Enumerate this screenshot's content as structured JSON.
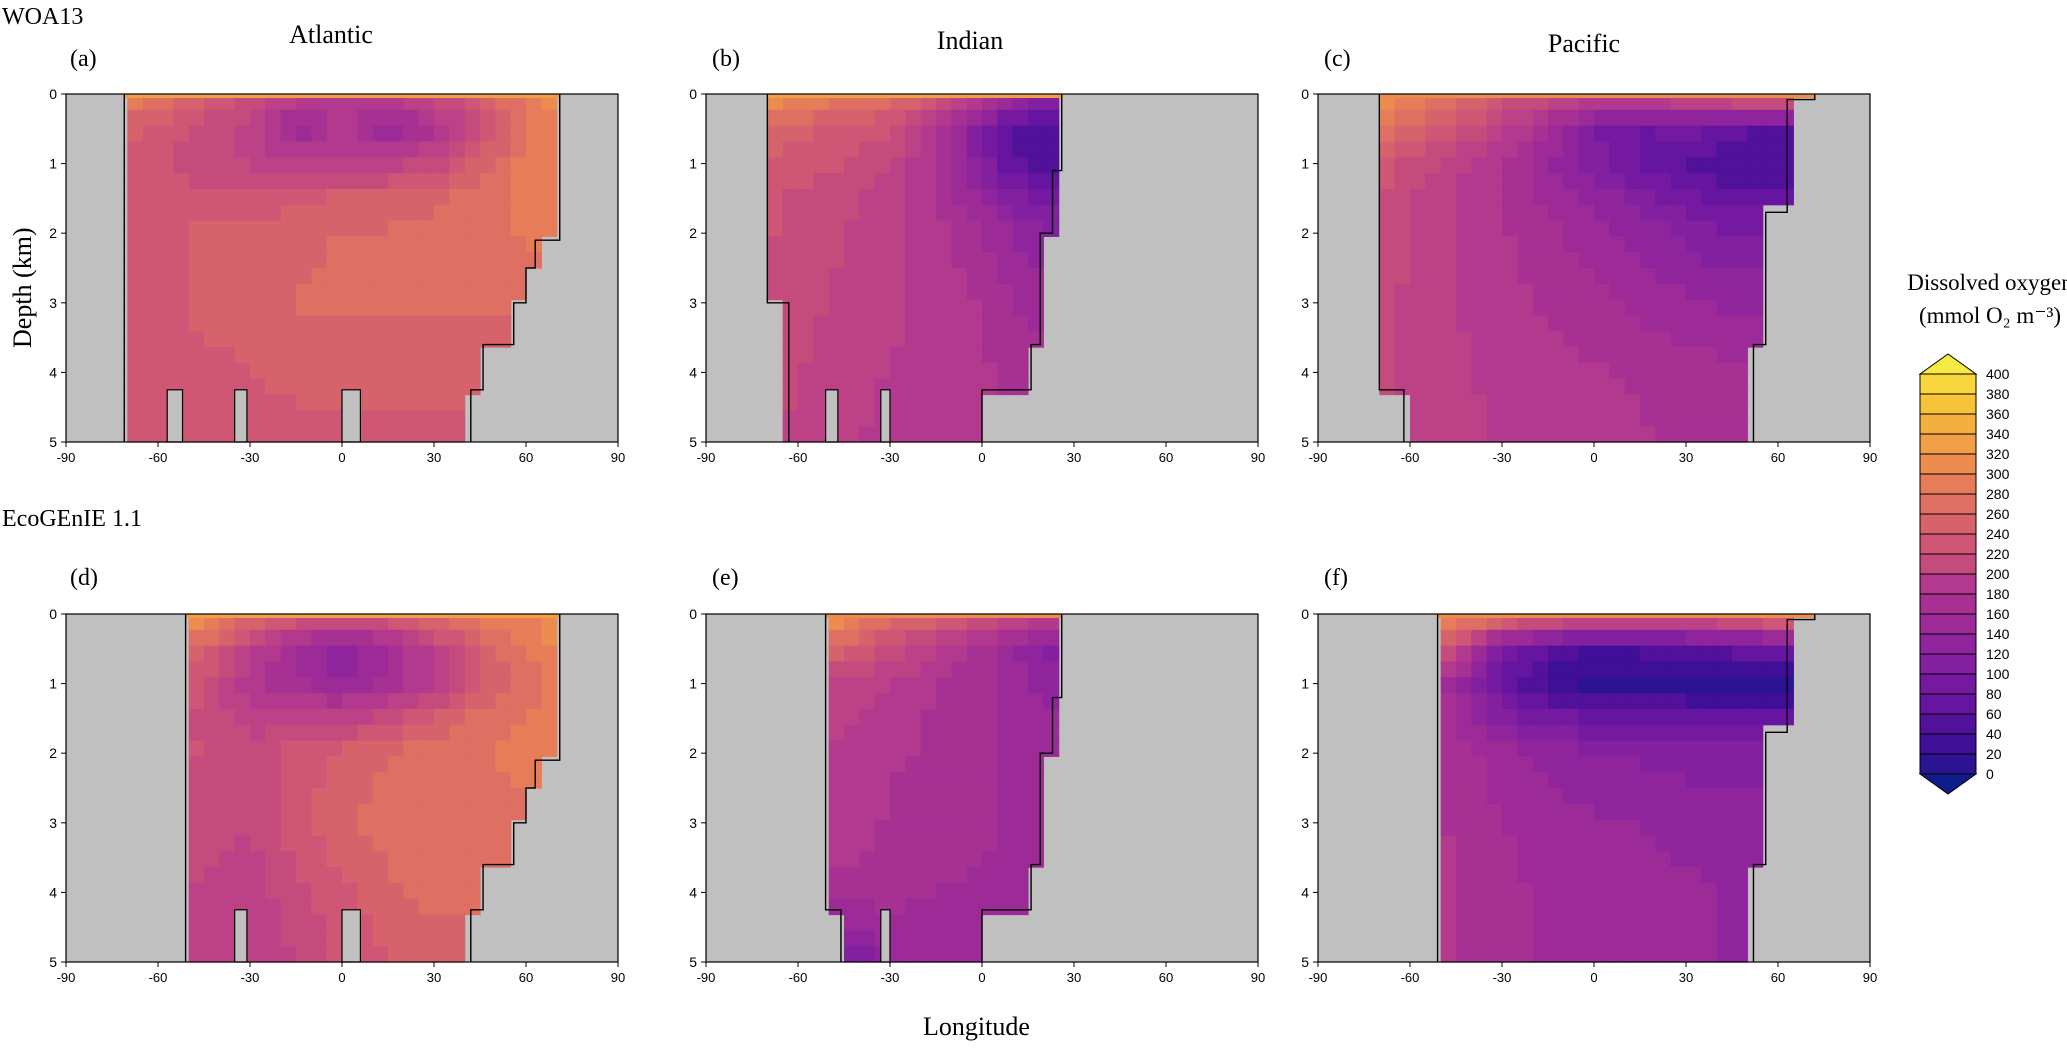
{
  "labels": {
    "row_top": "WOA13",
    "row_bottom": "EcoGEnIE 1.1",
    "col_titles": [
      "Atlantic",
      "Indian",
      "Pacific"
    ],
    "ylabel": "Depth (km)",
    "xlabel": "Longitude",
    "colorbar_title_line1": "Dissolved oxygen",
    "colorbar_title_line2": "(mmol O₂ m⁻³)"
  },
  "colors": {
    "land": "#c0c0c0",
    "scale": [
      "#0d1e8c",
      "#2b1391",
      "#3f0f97",
      "#52119a",
      "#65159f",
      "#7419a0",
      "#8220a0",
      "#8f249c",
      "#9c2b98",
      "#a73193",
      "#b2398d",
      "#bc4186",
      "#c64b7d",
      "#cf5675",
      "#d6626b",
      "#df6f62",
      "#e67d58",
      "#ec8d4f",
      "#f09e47",
      "#f4b03f",
      "#f7c33b",
      "#f8d63d",
      "#f5ea43"
    ]
  },
  "chart_data": [
    {
      "panel": "(a)",
      "basin": "Atlantic",
      "source": "WOA13",
      "type": "heatmap",
      "xlim": [
        -90,
        90
      ],
      "ylim": [
        0,
        5
      ],
      "xticks": [
        -90,
        -60,
        -30,
        0,
        30,
        60,
        90
      ],
      "yticks": [
        0,
        1,
        2,
        3,
        4,
        5
      ],
      "ocean_bounds": [
        [
          0,
          -71,
          71
        ],
        [
          1,
          -71,
          71
        ],
        [
          2,
          -71,
          71
        ],
        [
          2.1,
          -71,
          63
        ],
        [
          2.5,
          -71,
          60
        ],
        [
          3.0,
          -71,
          56
        ],
        [
          3.6,
          -71,
          46
        ],
        [
          4.25,
          -71,
          42
        ]
      ],
      "bottom_ridges": [
        [
          -57,
          -52
        ],
        [
          -35,
          -31
        ],
        [
          0,
          6
        ]
      ],
      "surface_o2": 280,
      "o2_grid": {
        "lat": [
          -71,
          -60,
          -45,
          -30,
          -15,
          0,
          15,
          30,
          45,
          60,
          71
        ],
        "depth": [
          0,
          0.5,
          1,
          1.5,
          2,
          3,
          4,
          5
        ],
        "values": [
          [
            300,
            280,
            250,
            230,
            200,
            190,
            190,
            220,
            250,
            290,
            310
          ],
          [
            250,
            240,
            220,
            200,
            140,
            180,
            140,
            170,
            220,
            280,
            300
          ],
          [
            240,
            230,
            220,
            210,
            190,
            200,
            200,
            220,
            250,
            290,
            300
          ],
          [
            240,
            230,
            230,
            230,
            240,
            250,
            250,
            260,
            270,
            290,
            300
          ],
          [
            240,
            240,
            250,
            250,
            260,
            265,
            265,
            270,
            275,
            285,
            290
          ],
          [
            240,
            240,
            250,
            255,
            265,
            265,
            265,
            265,
            265,
            270,
            270
          ],
          [
            245,
            235,
            240,
            245,
            250,
            250,
            250,
            250,
            250,
            255,
            255
          ],
          [
            240,
            235,
            235,
            240,
            240,
            240,
            240,
            240,
            240,
            240,
            240
          ]
        ]
      }
    },
    {
      "panel": "(b)",
      "basin": "Indian",
      "source": "WOA13",
      "type": "heatmap",
      "xlim": [
        -90,
        90
      ],
      "ylim": [
        0,
        5
      ],
      "xticks": [
        -90,
        -60,
        -30,
        0,
        30,
        60,
        90
      ],
      "yticks": [
        0,
        1,
        2,
        3,
        4,
        5
      ],
      "ocean_bounds": [
        [
          0,
          -70,
          26
        ],
        [
          1.1,
          -70,
          23
        ],
        [
          2.0,
          -70,
          19
        ],
        [
          3.0,
          -70,
          19
        ],
        [
          3.0,
          -63,
          19
        ],
        [
          3.6,
          -63,
          16
        ],
        [
          4.25,
          -63,
          0
        ]
      ],
      "bottom_ridges": [
        [
          -51,
          -47
        ],
        [
          -33,
          -30
        ]
      ],
      "surface_o2": 290,
      "o2_grid": {
        "lat": [
          -70,
          -60,
          -45,
          -30,
          -15,
          0,
          10,
          20,
          26
        ],
        "depth": [
          0,
          0.5,
          1,
          1.5,
          2,
          3,
          4,
          5
        ],
        "values": [
          [
            320,
            310,
            290,
            270,
            250,
            200,
            150,
            120,
            110
          ],
          [
            260,
            250,
            240,
            230,
            180,
            100,
            60,
            50,
            50
          ],
          [
            240,
            235,
            230,
            210,
            170,
            110,
            70,
            50,
            50
          ],
          [
            230,
            225,
            215,
            200,
            175,
            135,
            110,
            90,
            90
          ],
          [
            230,
            220,
            210,
            195,
            180,
            155,
            135,
            120,
            120
          ],
          [
            225,
            215,
            205,
            195,
            185,
            170,
            155,
            145,
            145
          ],
          [
            215,
            210,
            200,
            190,
            185,
            175,
            170,
            165,
            165
          ],
          [
            210,
            205,
            195,
            185,
            180,
            175,
            170,
            165,
            165
          ]
        ]
      }
    },
    {
      "panel": "(c)",
      "basin": "Pacific",
      "source": "WOA13",
      "type": "heatmap",
      "xlim": [
        -90,
        90
      ],
      "ylim": [
        0,
        5
      ],
      "xticks": [
        -90,
        -60,
        -30,
        0,
        30,
        60,
        90
      ],
      "yticks": [
        0,
        1,
        2,
        3,
        4,
        5
      ],
      "ocean_bounds": [
        [
          0,
          -70,
          72
        ],
        [
          0.08,
          -70,
          63
        ],
        [
          1.0,
          -70,
          63
        ],
        [
          1.7,
          -70,
          63
        ],
        [
          1.7,
          -70,
          56
        ],
        [
          3.6,
          -70,
          56
        ],
        [
          3.6,
          -70,
          52
        ],
        [
          4.25,
          -62,
          52
        ]
      ],
      "bottom_ridges": [],
      "surface_o2": 270,
      "o2_grid": {
        "lat": [
          -70,
          -60,
          -45,
          -30,
          -15,
          0,
          15,
          30,
          45,
          63
        ],
        "depth": [
          0,
          0.5,
          1,
          1.5,
          2,
          3,
          4,
          5
        ],
        "values": [
          [
            320,
            300,
            270,
            240,
            220,
            200,
            210,
            230,
            250,
            280
          ],
          [
            280,
            260,
            230,
            200,
            160,
            100,
            80,
            90,
            70,
            50
          ],
          [
            240,
            220,
            200,
            170,
            140,
            110,
            80,
            60,
            50,
            50
          ],
          [
            230,
            210,
            190,
            170,
            150,
            130,
            110,
            90,
            70,
            70
          ],
          [
            225,
            205,
            190,
            175,
            160,
            145,
            130,
            115,
            100,
            100
          ],
          [
            220,
            205,
            190,
            180,
            170,
            160,
            150,
            140,
            130,
            130
          ],
          [
            215,
            205,
            195,
            185,
            180,
            175,
            170,
            165,
            160,
            160
          ],
          [
            210,
            205,
            195,
            190,
            185,
            180,
            175,
            170,
            165,
            165
          ]
        ]
      }
    },
    {
      "panel": "(d)",
      "basin": "Atlantic",
      "source": "EcoGEnIE 1.1",
      "type": "heatmap",
      "xlim": [
        -90,
        90
      ],
      "ylim": [
        0,
        5
      ],
      "xticks": [
        -90,
        -60,
        -30,
        0,
        30,
        60,
        90
      ],
      "yticks": [
        0,
        1,
        2,
        3,
        4,
        5
      ],
      "ocean_bounds": [
        [
          0,
          -51,
          71
        ],
        [
          2.1,
          -51,
          63
        ],
        [
          2.5,
          -51,
          60
        ],
        [
          3.0,
          -51,
          56
        ],
        [
          3.6,
          -51,
          46
        ],
        [
          4.25,
          -51,
          42
        ]
      ],
      "bottom_ridges": [
        [
          -35,
          -31
        ],
        [
          0,
          6
        ]
      ],
      "surface_o2": 280,
      "o2_grid": {
        "lat": [
          -51,
          -40,
          -30,
          -15,
          0,
          15,
          30,
          45,
          60,
          71
        ],
        "depth": [
          0,
          0.5,
          1,
          1.5,
          2,
          3,
          4,
          5
        ],
        "values": [
          [
            320,
            300,
            270,
            250,
            240,
            250,
            270,
            290,
            300,
            320
          ],
          [
            270,
            240,
            200,
            150,
            120,
            150,
            200,
            250,
            280,
            300
          ],
          [
            240,
            210,
            180,
            160,
            140,
            160,
            190,
            240,
            270,
            290
          ],
          [
            230,
            215,
            200,
            195,
            200,
            220,
            250,
            270,
            285,
            290
          ],
          [
            230,
            225,
            220,
            235,
            250,
            265,
            275,
            280,
            285,
            285
          ],
          [
            220,
            215,
            210,
            240,
            260,
            270,
            275,
            280,
            280,
            280
          ],
          [
            210,
            205,
            200,
            220,
            240,
            260,
            270,
            275,
            275,
            275
          ],
          [
            200,
            195,
            190,
            210,
            230,
            245,
            250,
            250,
            250,
            250
          ]
        ]
      }
    },
    {
      "panel": "(e)",
      "basin": "Indian",
      "source": "EcoGEnIE 1.1",
      "type": "heatmap",
      "xlim": [
        -90,
        90
      ],
      "ylim": [
        0,
        5
      ],
      "xticks": [
        -90,
        -60,
        -30,
        0,
        30,
        60,
        90
      ],
      "yticks": [
        0,
        1,
        2,
        3,
        4,
        5
      ],
      "ocean_bounds": [
        [
          0,
          -51,
          26
        ],
        [
          1.2,
          -51,
          23
        ],
        [
          2.0,
          -51,
          19
        ],
        [
          3.6,
          -51,
          16
        ],
        [
          4.25,
          -46,
          0
        ]
      ],
      "bottom_ridges": [
        [
          -33,
          -30
        ]
      ],
      "surface_o2": 270,
      "o2_grid": {
        "lat": [
          -51,
          -40,
          -30,
          -15,
          0,
          10,
          20,
          26
        ],
        "depth": [
          0,
          0.5,
          1,
          1.5,
          2,
          3,
          4,
          5
        ],
        "values": [
          [
            320,
            300,
            280,
            260,
            240,
            220,
            200,
            180
          ],
          [
            260,
            240,
            220,
            190,
            160,
            140,
            120,
            110
          ],
          [
            210,
            200,
            190,
            175,
            160,
            145,
            130,
            120
          ],
          [
            200,
            190,
            180,
            170,
            160,
            150,
            140,
            135
          ],
          [
            190,
            185,
            175,
            170,
            160,
            150,
            145,
            140
          ],
          [
            185,
            180,
            170,
            165,
            160,
            150,
            145,
            140
          ],
          [
            170,
            165,
            160,
            155,
            150,
            140,
            135,
            130
          ],
          [
            90,
            100,
            140,
            145,
            145,
            140,
            135,
            130
          ]
        ]
      }
    },
    {
      "panel": "(f)",
      "basin": "Pacific",
      "source": "EcoGEnIE 1.1",
      "type": "heatmap",
      "xlim": [
        -90,
        90
      ],
      "ylim": [
        0,
        5
      ],
      "xticks": [
        -90,
        -60,
        -30,
        0,
        30,
        60,
        90
      ],
      "yticks": [
        0,
        1,
        2,
        3,
        4,
        5
      ],
      "ocean_bounds": [
        [
          0,
          -51,
          72
        ],
        [
          0.08,
          -51,
          63
        ],
        [
          1.7,
          -51,
          63
        ],
        [
          1.7,
          -51,
          56
        ],
        [
          3.6,
          -51,
          56
        ],
        [
          3.6,
          -51,
          52
        ]
      ],
      "bottom_ridges": [],
      "surface_o2": 260,
      "o2_grid": {
        "lat": [
          -51,
          -40,
          -30,
          -15,
          0,
          15,
          30,
          45,
          63
        ],
        "depth": [
          0,
          0.5,
          1,
          1.5,
          2,
          3,
          4,
          5
        ],
        "values": [
          [
            320,
            300,
            280,
            260,
            240,
            240,
            240,
            260,
            280
          ],
          [
            250,
            180,
            100,
            60,
            40,
            50,
            60,
            70,
            80
          ],
          [
            170,
            120,
            70,
            40,
            20,
            20,
            20,
            20,
            20
          ],
          [
            170,
            140,
            110,
            90,
            80,
            80,
            70,
            70,
            70
          ],
          [
            175,
            160,
            145,
            130,
            120,
            115,
            110,
            110,
            110
          ],
          [
            175,
            165,
            155,
            145,
            140,
            135,
            130,
            130,
            130
          ],
          [
            180,
            170,
            160,
            150,
            145,
            145,
            140,
            135,
            135
          ],
          [
            175,
            170,
            160,
            150,
            150,
            150,
            145,
            130,
            130
          ]
        ]
      }
    }
  ],
  "colorbar": {
    "min": 0,
    "max": 400,
    "step": 20,
    "tick_labels": [
      "0",
      "20",
      "40",
      "60",
      "80",
      "100",
      "120",
      "140",
      "160",
      "180",
      "200",
      "220",
      "240",
      "260",
      "280",
      "300",
      "320",
      "340",
      "360",
      "380",
      "400"
    ]
  }
}
